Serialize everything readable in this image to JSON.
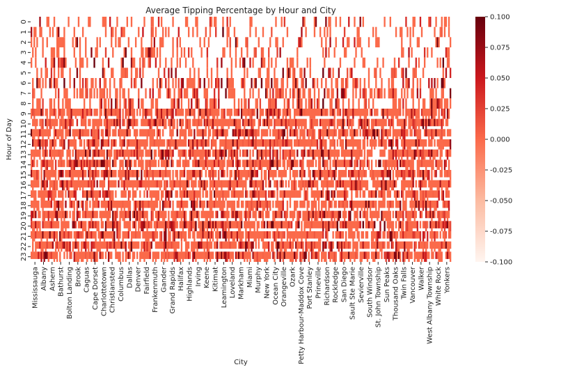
{
  "chart_data": {
    "type": "heatmap",
    "title": "Average Tipping Percentage by Hour and City",
    "xlabel": "City",
    "ylabel": "Hour of Day",
    "y_ticks": [
      "0",
      "1",
      "2",
      "3",
      "4",
      "5",
      "6",
      "7",
      "8",
      "9",
      "10",
      "11",
      "12",
      "13",
      "14",
      "15",
      "16",
      "17",
      "18",
      "19",
      "20",
      "21",
      "22",
      "23"
    ],
    "x_ticks": [
      "Mississauga",
      "Albany",
      "Ashern",
      "Bathurst",
      "Bolton Landing",
      "Brook",
      "Caguas",
      "Cape Dorset",
      "Charlottetown",
      "Christiansted",
      "Columbus",
      "Dallas",
      "Denver",
      "Fairfield",
      "Frankenmuth",
      "Gander",
      "Grand Rapids",
      "Halifax",
      "Highlands",
      "Irving",
      "Keene",
      "Kitimat",
      "Leamington",
      "Loveland",
      "Markham",
      "Miami",
      "Murphy",
      "New York",
      "Ocean City",
      "Orangeville",
      "Ozark",
      "Petty Harbour-Maddox Cove",
      "Port Stanley",
      "Prineville",
      "Richardson",
      "Rockledge",
      "San Diego",
      "Sault Ste Marie",
      "Sevierville",
      "South Windsor",
      "St. John Township",
      "Sun  Peaks",
      "Thousand Oaks",
      "Twin Falls",
      "Vancouver",
      "Walker",
      "West Albany Township",
      "White Rock",
      "Yonkers"
    ],
    "colormap": "Reds",
    "vmin": -0.1,
    "vmax": 0.1,
    "colorbar_ticks": [
      "0.100",
      "0.075",
      "0.050",
      "0.025",
      "0.000",
      "-0.025",
      "-0.050",
      "-0.075",
      "-0.100"
    ],
    "missing_color": "#ffffff"
  }
}
